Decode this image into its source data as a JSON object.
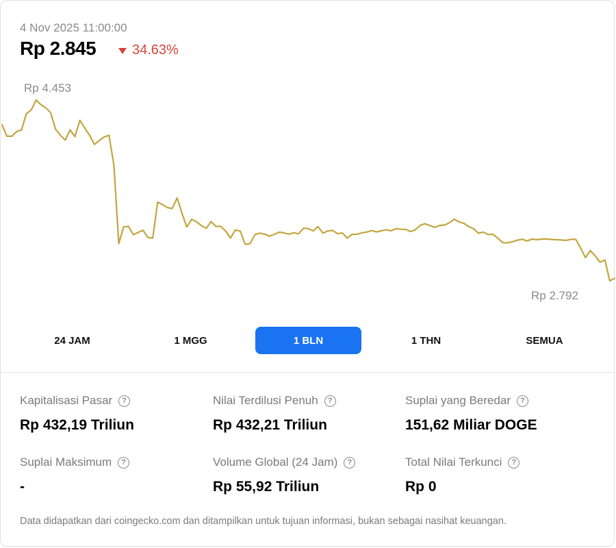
{
  "header": {
    "timestamp": "4 Nov 2025 11:00:00",
    "price": "Rp 2.845",
    "change": "34.63%",
    "change_direction": "down",
    "change_color": "#d9433b"
  },
  "chart": {
    "high_label": "Rp 4.453",
    "low_label": "Rp 2.792",
    "line_color": "#c5a43f"
  },
  "chart_data": {
    "type": "line",
    "title": "",
    "xlabel": "",
    "ylabel": "",
    "ylim": [
      2792,
      4453
    ],
    "annotations": [
      "Rp 4.453",
      "Rp 2.792"
    ],
    "grid": false,
    "series": [
      {
        "values": [
          4226,
          4120,
          4120,
          4163,
          4178,
          4327,
          4361,
          4453,
          4410,
          4381,
          4337,
          4185,
          4129,
          4085,
          4178,
          4117,
          4267,
          4196,
          4129,
          4045,
          4081,
          4114,
          4129,
          3856,
          3134,
          3288,
          3292,
          3216,
          3237,
          3257,
          3190,
          3185,
          3515,
          3493,
          3465,
          3456,
          3554,
          3414,
          3287,
          3357,
          3335,
          3300,
          3274,
          3337,
          3292,
          3292,
          3249,
          3185,
          3260,
          3248,
          3127,
          3134,
          3216,
          3230,
          3221,
          3203,
          3219,
          3239,
          3233,
          3220,
          3234,
          3224,
          3275,
          3272,
          3250,
          3290,
          3230,
          3250,
          3255,
          3225,
          3232,
          3184,
          3219,
          3220,
          3233,
          3240,
          3254,
          3241,
          3251,
          3262,
          3251,
          3272,
          3266,
          3265,
          3245,
          3261,
          3302,
          3317,
          3300,
          3284,
          3301,
          3305,
          3325,
          3359,
          3333,
          3320,
          3290,
          3270,
          3230,
          3240,
          3218,
          3220,
          3183,
          3143,
          3141,
          3151,
          3166,
          3174,
          3158,
          3176,
          3170,
          3175,
          3177,
          3172,
          3170,
          3167,
          3164,
          3173,
          3173,
          3093,
          3005,
          3070,
          3021,
          2963,
          2983,
          2792,
          2815
        ]
      }
    ]
  },
  "ranges": [
    {
      "label": "24 JAM",
      "active": false
    },
    {
      "label": "1 MGG",
      "active": false
    },
    {
      "label": "1 BLN",
      "active": true
    },
    {
      "label": "1 THN",
      "active": false
    },
    {
      "label": "SEMUA",
      "active": false
    }
  ],
  "stats": [
    {
      "label": "Kapitalisasi Pasar",
      "value": "Rp 432,19 Triliun"
    },
    {
      "label": "Nilai Terdilusi Penuh",
      "value": "Rp 432,21 Triliun"
    },
    {
      "label": "Suplai yang Beredar",
      "value": "151,62 Miliar DOGE"
    },
    {
      "label": "Suplai Maksimum",
      "value": "-"
    },
    {
      "label": "Volume Global (24 Jam)",
      "value": "Rp 55,92 Triliun"
    },
    {
      "label": "Total Nilai Terkunci",
      "value": "Rp 0"
    }
  ],
  "help_icon_glyph": "?",
  "disclaimer": "Data didapatkan dari coingecko.com dan ditampilkan untuk tujuan informasi, bukan sebagai nasihat keuangan.",
  "accent_color": "#1a73f0"
}
